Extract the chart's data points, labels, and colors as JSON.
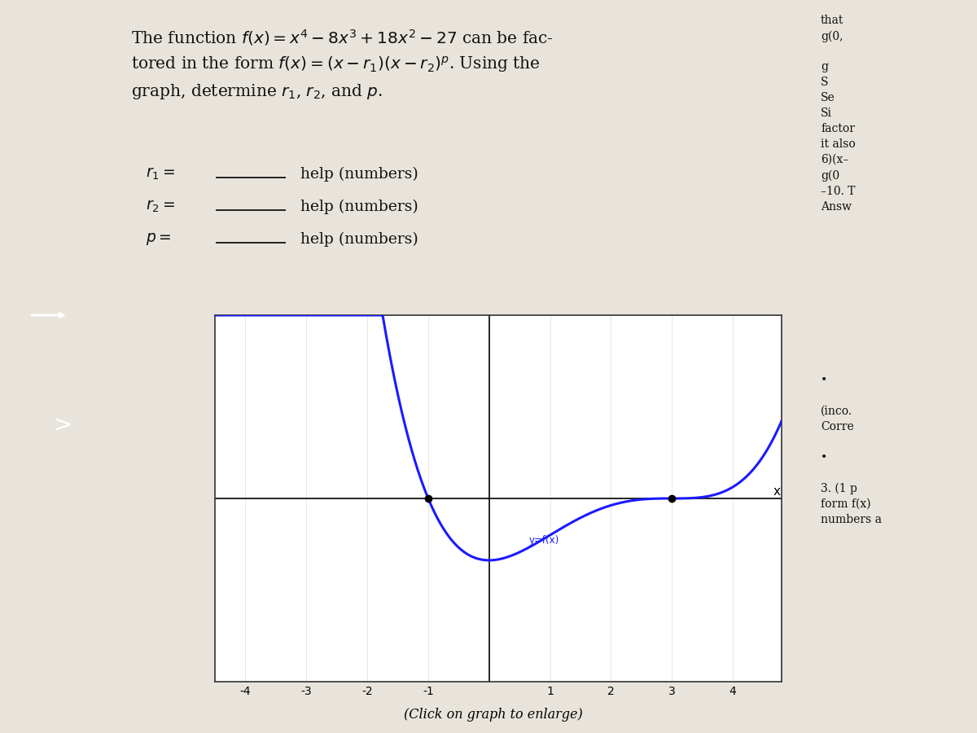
{
  "xlim": [
    -4.5,
    4.8
  ],
  "ylim": [
    -80,
    80
  ],
  "xticks": [
    -4,
    -3,
    -2,
    -1,
    1,
    2,
    3,
    4
  ],
  "roots": [
    -1,
    3
  ],
  "curve_color": "#1a1aff",
  "dot_color": "#000000",
  "background_color": "#e8e4dc",
  "graph_bg": "#ffffff",
  "graph_box_color": "#333333",
  "text_color": "#111111",
  "click_label": "(Click on graph to enlarge)"
}
